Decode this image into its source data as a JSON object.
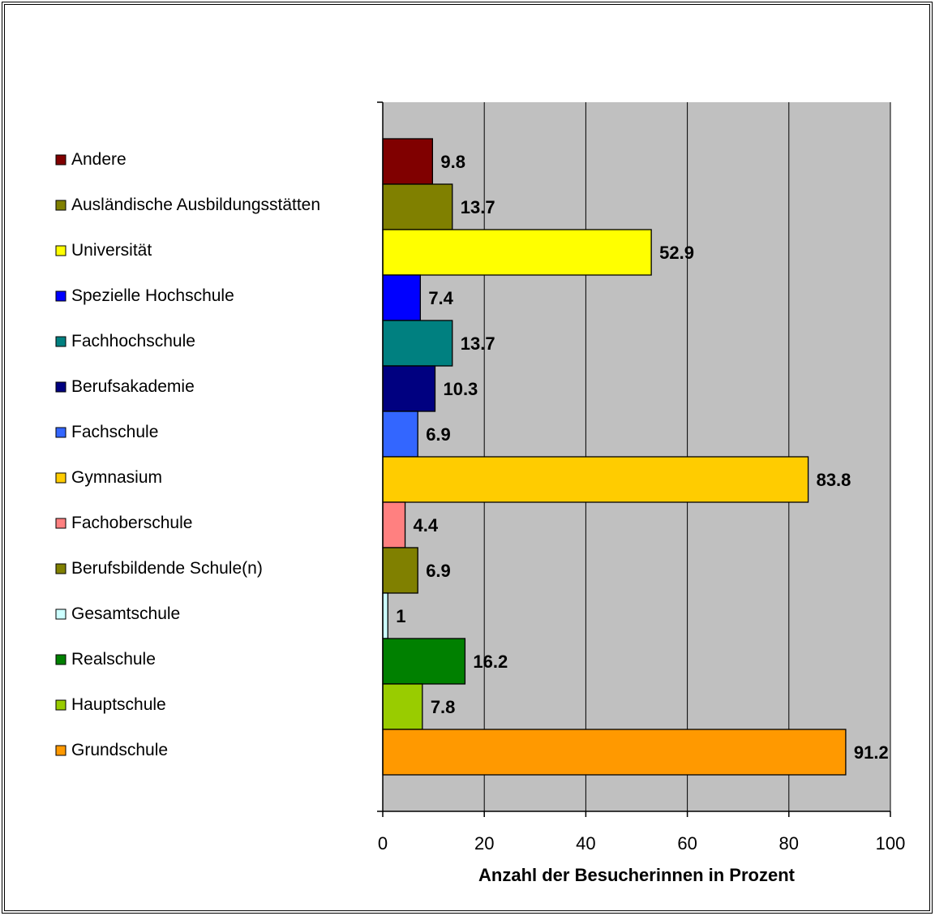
{
  "chart_data": {
    "type": "bar",
    "orientation": "horizontal",
    "categories": [
      "Andere",
      "Ausländische Ausbildungsstätten",
      "Universität",
      "Spezielle Hochschule",
      "Fachhochschule",
      "Berufsakademie",
      "Fachschule",
      "Gymnasium",
      "Fachoberschule",
      "Berufsbildende Schule(n)",
      "Gesamtschule",
      "Realschule",
      "Hauptschule",
      "Grundschule"
    ],
    "values": [
      9.8,
      13.7,
      52.9,
      7.4,
      13.7,
      10.3,
      6.9,
      83.8,
      4.4,
      6.9,
      1,
      16.2,
      7.8,
      91.2
    ],
    "value_labels": [
      "9.8",
      "13.7",
      "52.9",
      "7.4",
      "13.7",
      "10.3",
      "6.9",
      "83.8",
      "4.4",
      "6.9",
      "1",
      "16.2",
      "7.8",
      "91.2"
    ],
    "colors": [
      "#800000",
      "#808000",
      "#FFFF00",
      "#0000FF",
      "#008080",
      "#000080",
      "#3366FF",
      "#FFCC00",
      "#FF8080",
      "#808000",
      "#CCFFFF",
      "#008000",
      "#99CC00",
      "#FF9900"
    ],
    "xlabel": "Anzahl der Besucherinnen in Prozent",
    "xlim": [
      0,
      100
    ],
    "xticks": [
      0,
      20,
      40,
      60,
      80,
      100
    ],
    "xtick_labels": [
      "0",
      "20",
      "40",
      "60",
      "80",
      "100"
    ],
    "plot_background": "#C0C0C0",
    "grid": true,
    "legend_placement": "left"
  }
}
